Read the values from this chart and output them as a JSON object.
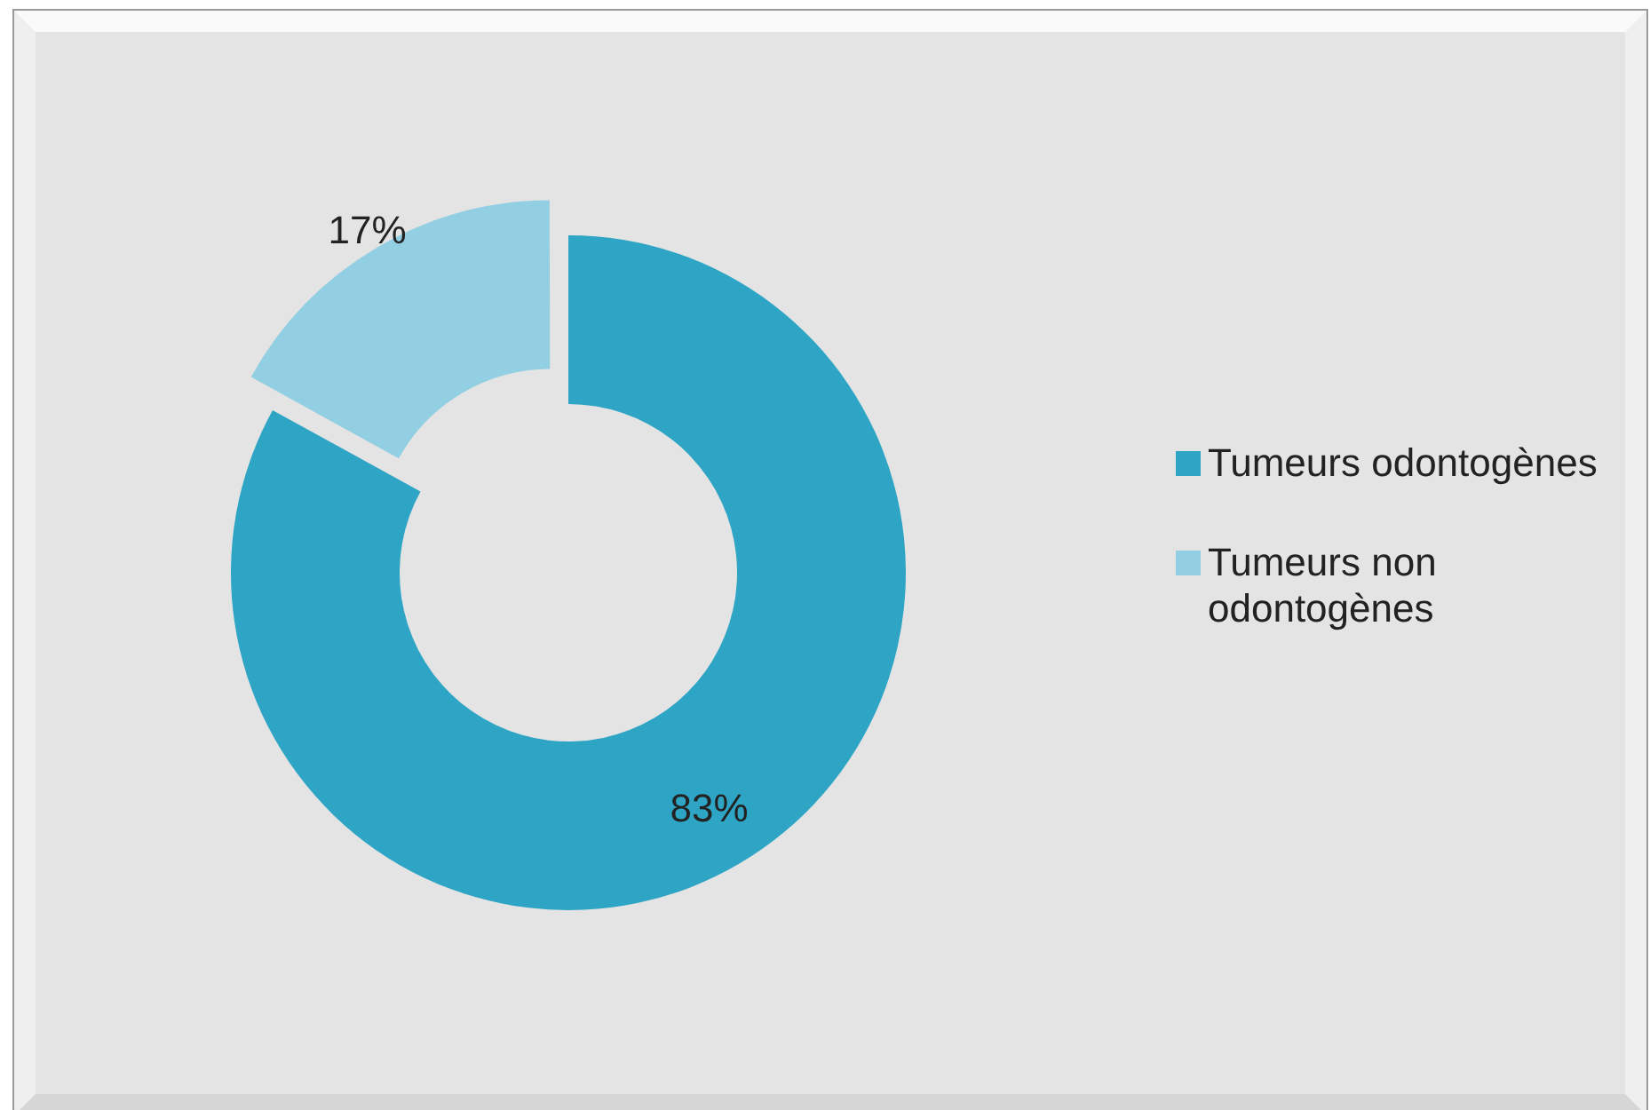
{
  "chart_data": {
    "type": "donut",
    "categories": [
      "Tumeurs odontogènes",
      "Tumeurs non odontogènes"
    ],
    "values": [
      83,
      17
    ],
    "colors": [
      "#2fa5c5",
      "#93cfe2"
    ],
    "value_labels": [
      "83%",
      "17%"
    ],
    "legend": "right"
  }
}
